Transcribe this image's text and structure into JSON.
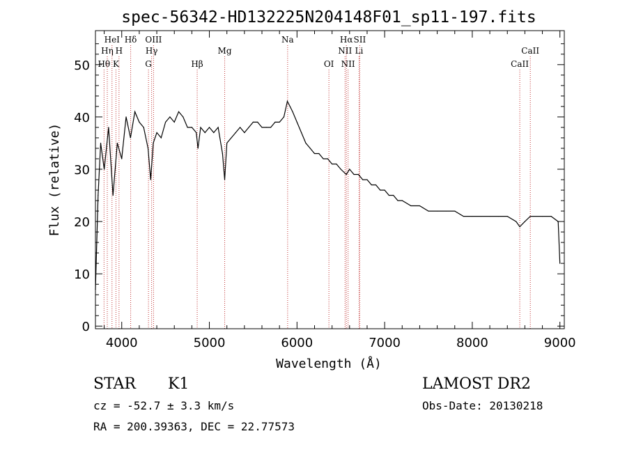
{
  "title": "spec-56342-HD132225N204148F01_sp11-197.fits",
  "chart_data": {
    "type": "line",
    "title": "spec-56342-HD132225N204148F01_sp11-197.fits",
    "xlabel": "Wavelength (Å)",
    "ylabel": "Flux (relative)",
    "xlim": [
      3700,
      9050
    ],
    "ylim": [
      -0.5,
      56.5
    ],
    "xticks": [
      4000,
      5000,
      6000,
      7000,
      8000,
      9000
    ],
    "xtick_labels": [
      "4000",
      "5000",
      "6000",
      "7000",
      "8000",
      "9000"
    ],
    "yticks": [
      0,
      10,
      20,
      30,
      40,
      50
    ],
    "ytick_labels": [
      "0",
      "10",
      "20",
      "30",
      "40",
      "50"
    ],
    "series": [
      {
        "name": "spectrum",
        "x": [
          3700,
          3730,
          3760,
          3800,
          3850,
          3900,
          3950,
          4000,
          4050,
          4100,
          4150,
          4200,
          4250,
          4300,
          4330,
          4360,
          4400,
          4450,
          4500,
          4550,
          4600,
          4650,
          4700,
          4750,
          4800,
          4850,
          4870,
          4900,
          4950,
          5000,
          5050,
          5100,
          5150,
          5175,
          5200,
          5250,
          5300,
          5350,
          5400,
          5450,
          5500,
          5550,
          5600,
          5650,
          5700,
          5750,
          5800,
          5850,
          5890,
          5920,
          5950,
          6000,
          6050,
          6100,
          6150,
          6200,
          6250,
          6300,
          6350,
          6400,
          6450,
          6500,
          6563,
          6600,
          6650,
          6700,
          6750,
          6800,
          6850,
          6900,
          6950,
          7000,
          7050,
          7100,
          7150,
          7200,
          7300,
          7400,
          7500,
          7600,
          7700,
          7800,
          7900,
          8000,
          8100,
          8200,
          8300,
          8400,
          8500,
          8542,
          8600,
          8662,
          8700,
          8800,
          8900,
          8980,
          9000
        ],
        "y": [
          7,
          25,
          35,
          30,
          38,
          25,
          35,
          32,
          40,
          36,
          41,
          39,
          38,
          34,
          28,
          35,
          37,
          36,
          39,
          40,
          39,
          41,
          40,
          38,
          38,
          37,
          34,
          38,
          37,
          38,
          37,
          38,
          33,
          28,
          35,
          36,
          37,
          38,
          37,
          38,
          39,
          39,
          38,
          38,
          38,
          39,
          39,
          40,
          43,
          42,
          41,
          39,
          37,
          35,
          34,
          33,
          33,
          32,
          32,
          31,
          31,
          30,
          29,
          30,
          29,
          29,
          28,
          28,
          27,
          27,
          26,
          26,
          25,
          25,
          24,
          24,
          23,
          23,
          22,
          22,
          22,
          22,
          21,
          21,
          21,
          21,
          21,
          21,
          20,
          19,
          20,
          21,
          21,
          21,
          21,
          20,
          12
        ]
      }
    ],
    "lines": [
      {
        "label": "Hθ",
        "wave": 3798,
        "row": 3
      },
      {
        "label": "Hη",
        "wave": 3835,
        "row": 2
      },
      {
        "label": "HeI",
        "wave": 3889,
        "row": 1
      },
      {
        "label": "K",
        "wave": 3934,
        "row": 3
      },
      {
        "label": "H",
        "wave": 3969,
        "row": 2
      },
      {
        "label": "Hδ",
        "wave": 4102,
        "row": 1
      },
      {
        "label": "G",
        "wave": 4305,
        "row": 3
      },
      {
        "label": "Hγ",
        "wave": 4341,
        "row": 2
      },
      {
        "label": "OIII",
        "wave": 4363,
        "row": 1
      },
      {
        "label": "Hβ",
        "wave": 4861,
        "row": 3
      },
      {
        "label": "Mg",
        "wave": 5175,
        "row": 2
      },
      {
        "label": "Na",
        "wave": 5893,
        "row": 1
      },
      {
        "label": "OI",
        "wave": 6364,
        "row": 3
      },
      {
        "label": "NII",
        "wave": 6548,
        "row": 2
      },
      {
        "label": "NII",
        "wave": 6583,
        "row": 3
      },
      {
        "label": "Hα",
        "wave": 6563,
        "row": 1
      },
      {
        "label": "SII",
        "wave": 6716,
        "row": 1
      },
      {
        "label": "Li",
        "wave": 6708,
        "row": 2
      },
      {
        "label": "CaII",
        "wave": 8542,
        "row": 3
      },
      {
        "label": "CaII",
        "wave": 8662,
        "row": 2
      }
    ]
  },
  "info": {
    "object_class": "STAR",
    "subclass": "K1",
    "survey": "LAMOST DR2",
    "cz": "cz = -52.7 ± 3.3 km/s",
    "obs_date": "Obs-Date: 20130218",
    "coords": "RA = 200.39363, DEC =  22.77573"
  },
  "colors": {
    "line_marker": "#c03030",
    "spectrum": "#000000",
    "axis": "#000000"
  }
}
